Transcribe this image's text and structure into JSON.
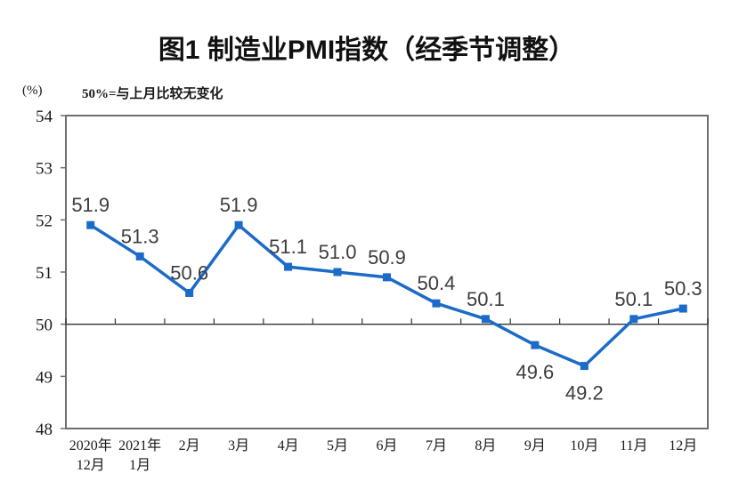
{
  "chart_data": {
    "type": "line",
    "title": "图1 制造业PMI指数（经季节调整）",
    "subtitle": "50%=与上月比较无变化",
    "unit_label": "(%)",
    "categories": [
      "2020年\n12月",
      "2021年\n1月",
      "2月",
      "3月",
      "4月",
      "5月",
      "6月",
      "7月",
      "8月",
      "9月",
      "10月",
      "11月",
      "12月"
    ],
    "values": [
      51.9,
      51.3,
      50.6,
      51.9,
      51.1,
      51.0,
      50.9,
      50.4,
      50.1,
      49.6,
      49.2,
      50.1,
      50.3
    ],
    "ylim": [
      48,
      54
    ],
    "ytick_step": 1,
    "yticks": [
      48,
      49,
      50,
      51,
      52,
      53,
      54
    ],
    "reference_line": 50,
    "labels_below_indices": [
      9,
      10
    ],
    "grid": "off",
    "legend": "none",
    "colors": {
      "line": "#1C6BC8",
      "marker": "#1C6BC8",
      "plot_border": "#6E6E6E",
      "reference_line": "#333333",
      "data_label": "#3D3D3D",
      "axis_text": "#1a1a1a"
    }
  }
}
